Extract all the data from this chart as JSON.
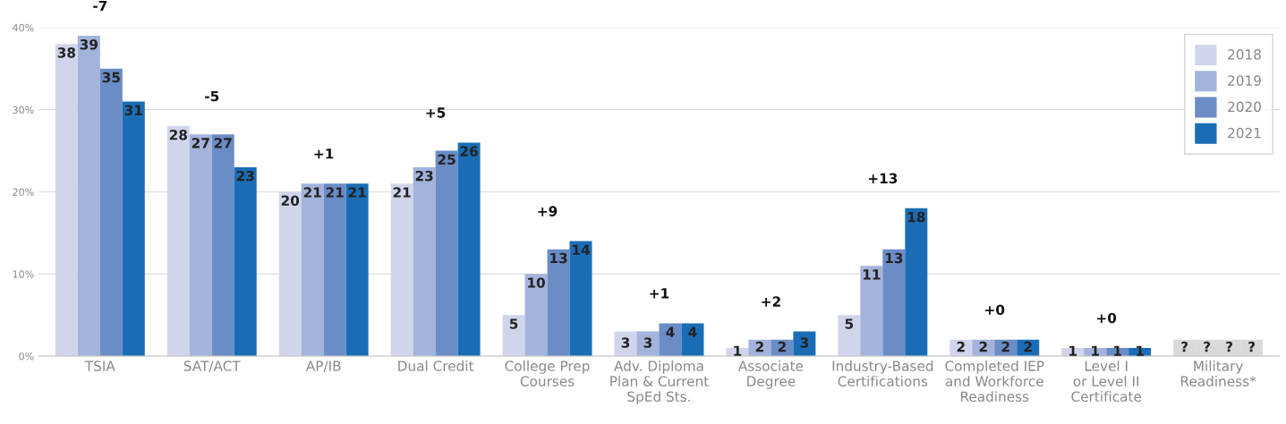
{
  "chart_data": {
    "type": "bar",
    "categories": [
      "TSIA",
      "SAT/ACT",
      "AP/IB",
      "Dual Credit",
      "College Prep\nCourses",
      "Adv. Diploma\nPlan & Current\nSpEd Sts.",
      "Associate\nDegree",
      "Industry-Based\nCertifications",
      "Completed IEP\nand Workforce\nReadiness",
      "Level I\nor Level II\nCertificate",
      "Military\nReadiness*"
    ],
    "series": [
      {
        "name": "2018",
        "color": "#d0d5ec",
        "colors": [
          "#d0d5ec",
          "#d0d5ec",
          "#d0d5ec",
          "#d0d5ec",
          "#d0d5ec",
          "#d0d5ec",
          "#d0d5ec",
          "#d0d5ec",
          "#d0d5ec",
          "#d0d5ec",
          "#d9d9d9"
        ],
        "values": [
          38,
          28,
          20,
          21,
          5,
          3,
          1,
          5,
          2,
          1,
          2
        ],
        "value_labels": [
          "38",
          "28",
          "20",
          "21",
          "5",
          "3",
          "1",
          "5",
          "2",
          "1",
          "?"
        ]
      },
      {
        "name": "2019",
        "color": "#a3b3dc",
        "colors": [
          "#a3b3dc",
          "#a3b3dc",
          "#a3b3dc",
          "#a3b3dc",
          "#a3b3dc",
          "#a3b3dc",
          "#a3b3dc",
          "#a3b3dc",
          "#a3b3dc",
          "#a3b3dc",
          "#d9d9d9"
        ],
        "values": [
          39,
          27,
          21,
          23,
          10,
          3,
          2,
          11,
          2,
          1,
          2
        ],
        "value_labels": [
          "39",
          "27",
          "21",
          "23",
          "10",
          "3",
          "2",
          "11",
          "2",
          "1",
          "?"
        ]
      },
      {
        "name": "2020",
        "color": "#6a8cc7",
        "colors": [
          "#6a8cc7",
          "#6a8cc7",
          "#6a8cc7",
          "#6a8cc7",
          "#6a8cc7",
          "#6a8cc7",
          "#6a8cc7",
          "#6a8cc7",
          "#6a8cc7",
          "#6a8cc7",
          "#d9d9d9"
        ],
        "values": [
          35,
          27,
          21,
          25,
          13,
          4,
          2,
          13,
          2,
          1,
          2
        ],
        "value_labels": [
          "35",
          "27",
          "21",
          "25",
          "13",
          "4",
          "2",
          "13",
          "2",
          "1",
          "?"
        ]
      },
      {
        "name": "2021",
        "color": "#1a6db5",
        "colors": [
          "#1a6db5",
          "#1a6db5",
          "#1a6db5",
          "#1a6db5",
          "#1a6db5",
          "#1a6db5",
          "#1a6db5",
          "#1a6db5",
          "#1a6db5",
          "#1a6db5",
          "#d9d9d9"
        ],
        "values": [
          31,
          23,
          21,
          26,
          14,
          4,
          3,
          18,
          2,
          1,
          2
        ],
        "value_labels": [
          "31",
          "23",
          "21",
          "26",
          "14",
          "4",
          "3",
          "18",
          "2",
          "1",
          "?"
        ]
      }
    ],
    "ylim": [
      0,
      40
    ],
    "yticks": [
      {
        "value": 0,
        "label": "0%"
      },
      {
        "value": 10,
        "label": "10%"
      },
      {
        "value": 20,
        "label": "20%"
      },
      {
        "value": 30,
        "label": "30%"
      },
      {
        "value": 40,
        "label": "40%"
      }
    ],
    "grid": "y",
    "legend": "top right",
    "annotations": [
      "-7",
      "-5",
      "+1",
      "+5",
      "+9",
      "+1",
      "+2",
      "+13",
      "+0",
      "+0"
    ]
  }
}
